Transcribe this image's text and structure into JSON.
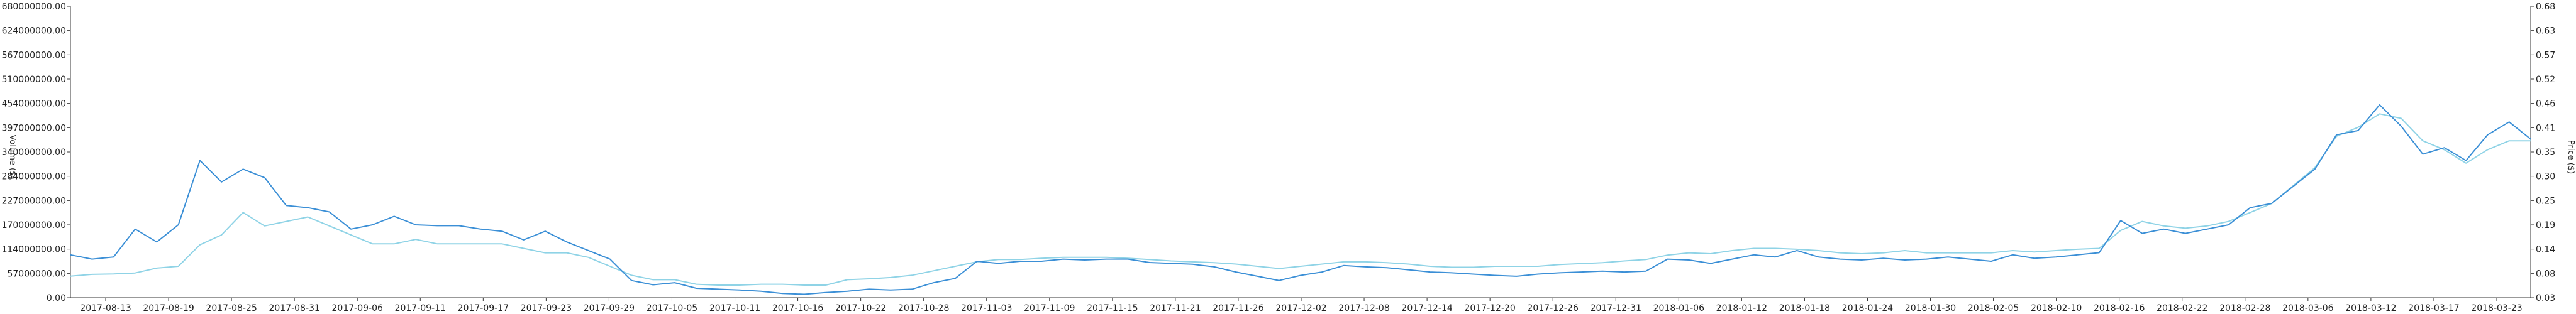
{
  "chart_data": {
    "type": "line",
    "title": "",
    "ylabel_left": "Volume ($)",
    "ylabel_right": "Price ($)",
    "xlabel": "",
    "grid": false,
    "left_axis": {
      "min": 0,
      "max": 680000000,
      "ticks": [
        "680000000.00",
        "624000000.00",
        "567000000.00",
        "510000000.00",
        "454000000.00",
        "397000000.00",
        "340000000.00",
        "284000000.00",
        "227000000.00",
        "170000000.00",
        "114000000.00",
        "57000000.00",
        "0.00"
      ]
    },
    "right_axis": {
      "min": 0.03,
      "max": 0.68,
      "ticks": [
        "0.68",
        "0.63",
        "0.57",
        "0.52",
        "0.46",
        "0.41",
        "0.35",
        "0.30",
        "0.25",
        "0.19",
        "0.14",
        "0.08",
        "0.03"
      ]
    },
    "x_ticks": [
      "2017-08-13",
      "2017-08-19",
      "2017-08-25",
      "2017-08-31",
      "2017-09-06",
      "2017-09-11",
      "2017-09-17",
      "2017-09-23",
      "2017-09-29",
      "2017-10-05",
      "2017-10-11",
      "2017-10-16",
      "2017-10-22",
      "2017-10-28",
      "2017-11-03",
      "2017-11-09",
      "2017-11-15",
      "2017-11-21",
      "2017-11-26",
      "2017-12-02",
      "2017-12-08",
      "2017-12-14",
      "2017-12-20",
      "2017-12-26",
      "2017-12-31",
      "2018-01-06",
      "2018-01-12",
      "2018-01-18",
      "2018-01-24",
      "2018-01-30",
      "2018-02-05",
      "2018-02-10",
      "2018-02-16",
      "2018-02-22",
      "2018-02-28",
      "2018-03-06",
      "2018-03-12",
      "2018-03-17",
      "2018-03-23"
    ],
    "x_span": 228,
    "series": [
      {
        "name": "Volume ($)",
        "axis": "left",
        "color": "#3b8fd6",
        "points": [
          [
            0,
            100000000
          ],
          [
            2,
            90000000
          ],
          [
            4,
            95000000
          ],
          [
            6,
            160000000
          ],
          [
            8,
            130000000
          ],
          [
            10,
            170000000
          ],
          [
            12,
            320000000
          ],
          [
            14,
            270000000
          ],
          [
            16,
            300000000
          ],
          [
            18,
            280000000
          ],
          [
            20,
            215000000
          ],
          [
            22,
            210000000
          ],
          [
            24,
            200000000
          ],
          [
            26,
            160000000
          ],
          [
            28,
            170000000
          ],
          [
            30,
            190000000
          ],
          [
            32,
            170000000
          ],
          [
            34,
            168000000
          ],
          [
            36,
            168000000
          ],
          [
            38,
            160000000
          ],
          [
            40,
            155000000
          ],
          [
            42,
            135000000
          ],
          [
            44,
            155000000
          ],
          [
            46,
            130000000
          ],
          [
            48,
            110000000
          ],
          [
            50,
            90000000
          ],
          [
            52,
            40000000
          ],
          [
            54,
            30000000
          ],
          [
            56,
            35000000
          ],
          [
            58,
            22000000
          ],
          [
            60,
            20000000
          ],
          [
            62,
            18000000
          ],
          [
            64,
            15000000
          ],
          [
            66,
            10000000
          ],
          [
            68,
            8000000
          ],
          [
            70,
            12000000
          ],
          [
            72,
            15000000
          ],
          [
            74,
            20000000
          ],
          [
            76,
            18000000
          ],
          [
            78,
            20000000
          ],
          [
            80,
            35000000
          ],
          [
            82,
            45000000
          ],
          [
            84,
            85000000
          ],
          [
            86,
            80000000
          ],
          [
            88,
            85000000
          ],
          [
            90,
            85000000
          ],
          [
            92,
            90000000
          ],
          [
            94,
            88000000
          ],
          [
            96,
            90000000
          ],
          [
            98,
            90000000
          ],
          [
            100,
            82000000
          ],
          [
            102,
            80000000
          ],
          [
            104,
            78000000
          ],
          [
            106,
            72000000
          ],
          [
            108,
            60000000
          ],
          [
            110,
            50000000
          ],
          [
            112,
            40000000
          ],
          [
            114,
            52000000
          ],
          [
            116,
            60000000
          ],
          [
            118,
            75000000
          ],
          [
            120,
            72000000
          ],
          [
            122,
            70000000
          ],
          [
            124,
            65000000
          ],
          [
            126,
            60000000
          ],
          [
            128,
            58000000
          ],
          [
            130,
            55000000
          ],
          [
            132,
            52000000
          ],
          [
            134,
            50000000
          ],
          [
            136,
            55000000
          ],
          [
            138,
            58000000
          ],
          [
            140,
            60000000
          ],
          [
            142,
            62000000
          ],
          [
            144,
            60000000
          ],
          [
            146,
            62000000
          ],
          [
            148,
            90000000
          ],
          [
            150,
            88000000
          ],
          [
            152,
            80000000
          ],
          [
            154,
            90000000
          ],
          [
            156,
            100000000
          ],
          [
            158,
            95000000
          ],
          [
            160,
            110000000
          ],
          [
            162,
            95000000
          ],
          [
            164,
            90000000
          ],
          [
            166,
            88000000
          ],
          [
            168,
            92000000
          ],
          [
            170,
            88000000
          ],
          [
            172,
            90000000
          ],
          [
            174,
            95000000
          ],
          [
            176,
            90000000
          ],
          [
            178,
            85000000
          ],
          [
            180,
            100000000
          ],
          [
            182,
            92000000
          ],
          [
            184,
            95000000
          ],
          [
            186,
            100000000
          ],
          [
            188,
            105000000
          ],
          [
            190,
            180000000
          ],
          [
            192,
            150000000
          ],
          [
            194,
            160000000
          ],
          [
            196,
            150000000
          ],
          [
            198,
            160000000
          ],
          [
            200,
            170000000
          ],
          [
            202,
            210000000
          ],
          [
            204,
            220000000
          ],
          [
            206,
            260000000
          ],
          [
            208,
            300000000
          ],
          [
            210,
            380000000
          ],
          [
            212,
            390000000
          ],
          [
            214,
            450000000
          ],
          [
            216,
            400000000
          ],
          [
            218,
            335000000
          ],
          [
            220,
            350000000
          ],
          [
            222,
            320000000
          ],
          [
            224,
            380000000
          ],
          [
            226,
            410000000
          ],
          [
            228,
            370000000
          ]
        ]
      },
      {
        "name": "Price ($)",
        "axis": "right",
        "color": "#8fd3e6",
        "points": [
          [
            0,
            0.078
          ],
          [
            2,
            0.082
          ],
          [
            4,
            0.083
          ],
          [
            6,
            0.085
          ],
          [
            8,
            0.096
          ],
          [
            10,
            0.1
          ],
          [
            12,
            0.148
          ],
          [
            14,
            0.17
          ],
          [
            16,
            0.22
          ],
          [
            18,
            0.19
          ],
          [
            20,
            0.2
          ],
          [
            22,
            0.21
          ],
          [
            24,
            0.19
          ],
          [
            26,
            0.17
          ],
          [
            28,
            0.15
          ],
          [
            30,
            0.15
          ],
          [
            32,
            0.16
          ],
          [
            34,
            0.15
          ],
          [
            36,
            0.15
          ],
          [
            38,
            0.15
          ],
          [
            40,
            0.15
          ],
          [
            42,
            0.14
          ],
          [
            44,
            0.13
          ],
          [
            46,
            0.13
          ],
          [
            48,
            0.12
          ],
          [
            50,
            0.1
          ],
          [
            52,
            0.08
          ],
          [
            54,
            0.07
          ],
          [
            56,
            0.07
          ],
          [
            58,
            0.06
          ],
          [
            60,
            0.058
          ],
          [
            62,
            0.058
          ],
          [
            64,
            0.06
          ],
          [
            66,
            0.06
          ],
          [
            68,
            0.058
          ],
          [
            70,
            0.058
          ],
          [
            72,
            0.07
          ],
          [
            74,
            0.072
          ],
          [
            76,
            0.075
          ],
          [
            78,
            0.08
          ],
          [
            80,
            0.09
          ],
          [
            82,
            0.1
          ],
          [
            84,
            0.11
          ],
          [
            86,
            0.115
          ],
          [
            88,
            0.115
          ],
          [
            90,
            0.118
          ],
          [
            92,
            0.12
          ],
          [
            94,
            0.12
          ],
          [
            96,
            0.12
          ],
          [
            98,
            0.118
          ],
          [
            100,
            0.115
          ],
          [
            102,
            0.112
          ],
          [
            104,
            0.11
          ],
          [
            106,
            0.108
          ],
          [
            108,
            0.105
          ],
          [
            110,
            0.1
          ],
          [
            112,
            0.095
          ],
          [
            114,
            0.1
          ],
          [
            116,
            0.105
          ],
          [
            118,
            0.11
          ],
          [
            120,
            0.11
          ],
          [
            122,
            0.108
          ],
          [
            124,
            0.105
          ],
          [
            126,
            0.1
          ],
          [
            128,
            0.098
          ],
          [
            130,
            0.098
          ],
          [
            132,
            0.1
          ],
          [
            134,
            0.1
          ],
          [
            136,
            0.1
          ],
          [
            138,
            0.104
          ],
          [
            140,
            0.106
          ],
          [
            142,
            0.108
          ],
          [
            144,
            0.112
          ],
          [
            146,
            0.115
          ],
          [
            148,
            0.125
          ],
          [
            150,
            0.13
          ],
          [
            152,
            0.128
          ],
          [
            154,
            0.135
          ],
          [
            156,
            0.14
          ],
          [
            158,
            0.14
          ],
          [
            160,
            0.138
          ],
          [
            162,
            0.135
          ],
          [
            164,
            0.13
          ],
          [
            166,
            0.128
          ],
          [
            168,
            0.13
          ],
          [
            170,
            0.135
          ],
          [
            172,
            0.13
          ],
          [
            174,
            0.13
          ],
          [
            176,
            0.13
          ],
          [
            178,
            0.13
          ],
          [
            180,
            0.135
          ],
          [
            182,
            0.132
          ],
          [
            184,
            0.135
          ],
          [
            186,
            0.138
          ],
          [
            188,
            0.14
          ],
          [
            190,
            0.18
          ],
          [
            192,
            0.2
          ],
          [
            194,
            0.19
          ],
          [
            196,
            0.185
          ],
          [
            198,
            0.19
          ],
          [
            200,
            0.2
          ],
          [
            202,
            0.22
          ],
          [
            204,
            0.24
          ],
          [
            206,
            0.28
          ],
          [
            208,
            0.32
          ],
          [
            210,
            0.39
          ],
          [
            212,
            0.41
          ],
          [
            214,
            0.44
          ],
          [
            216,
            0.43
          ],
          [
            218,
            0.38
          ],
          [
            220,
            0.36
          ],
          [
            222,
            0.33
          ],
          [
            224,
            0.36
          ],
          [
            226,
            0.38
          ],
          [
            228,
            0.38
          ]
        ]
      }
    ]
  }
}
